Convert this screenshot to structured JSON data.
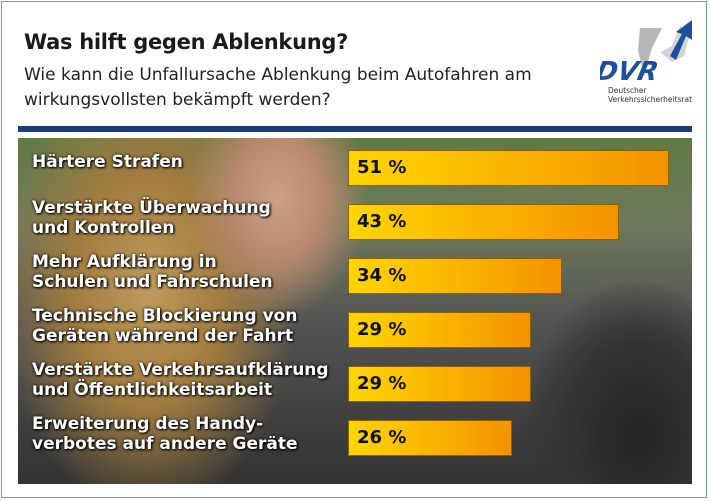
{
  "header": {
    "title": "Was hilft gegen Ablenkung?",
    "subtitle": "Wie kann die Unfallursache Ablenkung beim Autofahren am wirkungsvollsten bekämpft werden?"
  },
  "logo": {
    "text": "DVR",
    "org_line1": "Deutscher",
    "org_line2": "Verkehrssicherheitsrat"
  },
  "colors": {
    "brand_blue": "#1a3c78",
    "bar_start": "#ffd500",
    "bar_end": "#f39200"
  },
  "chart_data": {
    "type": "bar",
    "orientation": "horizontal",
    "title": "Was hilft gegen Ablenkung?",
    "categories": [
      [
        "Härtere Strafen"
      ],
      [
        "Verstärkte Überwachung",
        "und Kontrollen"
      ],
      [
        "Mehr Aufklärung in",
        "Schulen und Fahrschulen"
      ],
      [
        "Technische Blockierung von",
        "Geräten während der Fahrt"
      ],
      [
        "Verstärkte Verkehrsaufklärung",
        "und Öffentlichkeitsarbeit"
      ],
      [
        "Erweiterung des Handy-",
        "verbotes auf andere Geräte"
      ]
    ],
    "values": [
      51,
      43,
      34,
      29,
      29,
      26
    ],
    "value_labels": [
      "51 %",
      "43 %",
      "34 %",
      "29 %",
      "29 %",
      "26 %"
    ],
    "unit": "%",
    "grid": false
  }
}
